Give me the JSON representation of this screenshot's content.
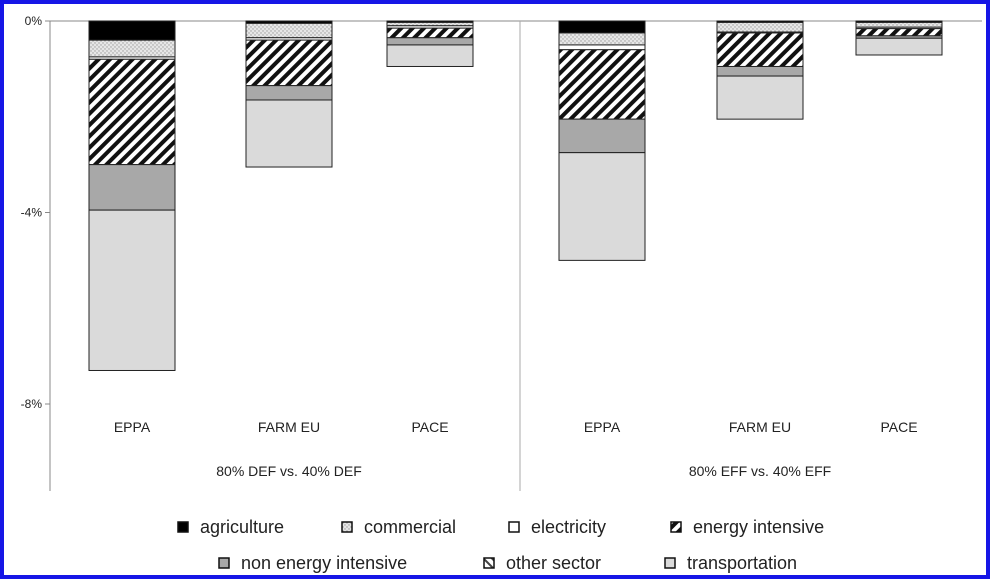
{
  "chart_data": {
    "type": "bar",
    "stacked": true,
    "title": "",
    "xlabel": "",
    "ylabel": "",
    "ylim": [
      -10,
      0
    ],
    "yticks": [
      0,
      -4,
      -8
    ],
    "ytick_labels": [
      "0%",
      "-4%",
      "-8%"
    ],
    "groups": [
      {
        "label": "80% DEF vs. 40% DEF",
        "categories": [
          "EPPA",
          "FARM EU",
          "PACE"
        ]
      },
      {
        "label": "80% EFF vs. 40% EFF",
        "categories": [
          "EPPA",
          "FARM EU",
          "PACE"
        ]
      }
    ],
    "categories": [
      "EPPA",
      "FARM EU",
      "PACE",
      "EPPA",
      "FARM EU",
      "PACE"
    ],
    "series": [
      {
        "name": "agriculture",
        "values": [
          -0.4,
          -0.05,
          -0.03,
          -0.25,
          -0.03,
          -0.03
        ]
      },
      {
        "name": "commercial",
        "values": [
          -0.35,
          -0.3,
          -0.07,
          -0.25,
          -0.2,
          -0.1
        ]
      },
      {
        "name": "electricity",
        "values": [
          -0.05,
          -0.05,
          -0.05,
          -0.1,
          -0.02,
          -0.03
        ]
      },
      {
        "name": "energy intensive",
        "values": [
          -2.2,
          -0.95,
          -0.2,
          -1.45,
          -0.7,
          -0.15
        ]
      },
      {
        "name": "non energy intensive",
        "values": [
          -0.95,
          -0.3,
          -0.15,
          -0.7,
          -0.2,
          -0.05
        ]
      },
      {
        "name": "other sector",
        "values": [
          0,
          0,
          0,
          0,
          0,
          0
        ]
      },
      {
        "name": "transportation",
        "values": [
          -3.35,
          -1.4,
          -0.45,
          -2.25,
          -0.9,
          -0.35
        ]
      }
    ],
    "colors": {
      "agriculture": "#000000",
      "commercial": "#e4e4e4",
      "electricity": "#ffffff",
      "energy intensive": "#111111",
      "non energy intensive": "#a8a8a8",
      "other sector": "#d8d8d8",
      "transportation": "#dadada"
    },
    "patterns": {
      "commercial": "dots",
      "energy intensive": "diagonal",
      "other sector": "diagonal-light"
    },
    "legend_position": "bottom",
    "grid": false
  }
}
